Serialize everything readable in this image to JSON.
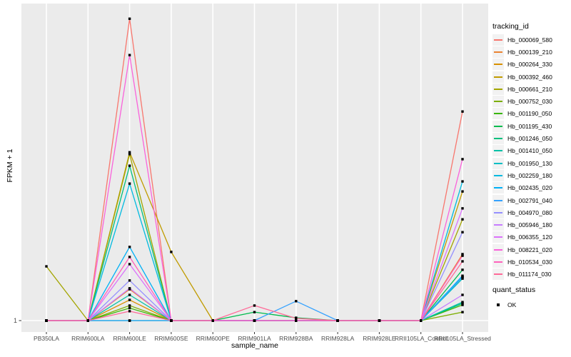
{
  "figure": {
    "bg": "#FFFFFF",
    "panel_bg": "#EBEBEB",
    "grid_color": "#FFFFFF",
    "tick_color": "#333333",
    "tick_label_color": "#4D4D4D",
    "axis_title_color": "#000000",
    "legend_key_bg": "#F2F2F2",
    "marker_color": "#000000"
  },
  "chart_data": {
    "type": "line",
    "title": "",
    "xlabel": "sample_name",
    "ylabel": "FPKM + 1",
    "y_tick_labels": [
      "1"
    ],
    "y_scale_note": "Log-style axis where only the value 1 is labeled at the baseline; series values are relative heights above the y=1 baseline as a fraction of panel height (0 = FPKM+1 of 1).",
    "grid": "major vertical per sample + horizontal line at y=1, white on gray panel",
    "legend_position": "right",
    "marker": "small black square on every observation",
    "categories": [
      "PB350LA",
      "RRIM600LA",
      "RRIM600LE",
      "RRIM600SE",
      "RRIM600PE",
      "RRIM901LA",
      "RRIM928BA",
      "RRIM928LA",
      "RRIM928LE",
      "RRII105LA_Control",
      "RRII105LA_Stressed"
    ],
    "series": [
      {
        "name": "Hb_000069_580",
        "color": "#F8766D",
        "values": [
          0,
          0,
          0.963,
          0,
          0,
          0,
          0,
          0,
          0,
          0,
          0.667
        ]
      },
      {
        "name": "Hb_000139_210",
        "color": "#EA8331",
        "values": [
          0,
          0,
          0.1,
          0,
          0,
          0,
          0,
          0,
          0,
          0,
          0.212
        ]
      },
      {
        "name": "Hb_000264_330",
        "color": "#D89000",
        "values": [
          0,
          0,
          0.066,
          0,
          0,
          0,
          0,
          0,
          0,
          0,
          0.139
        ]
      },
      {
        "name": "Hb_000392_460",
        "color": "#C09B00",
        "values": [
          0,
          0,
          0.537,
          0.219,
          0,
          0,
          0,
          0,
          0,
          0,
          0.412
        ]
      },
      {
        "name": "Hb_000661_210",
        "color": "#A3A500",
        "values": [
          0.173,
          0,
          0.531,
          0,
          0,
          0,
          0,
          0,
          0,
          0,
          0.323
        ]
      },
      {
        "name": "Hb_000752_030",
        "color": "#7CAE00",
        "values": [
          0,
          0,
          0.048,
          0,
          0,
          0,
          0,
          0,
          0,
          0,
          0.027
        ]
      },
      {
        "name": "Hb_001190_050",
        "color": "#39B600",
        "values": [
          0,
          0,
          0.04,
          0,
          0,
          0,
          0,
          0,
          0,
          0,
          0.05
        ]
      },
      {
        "name": "Hb_001195_430",
        "color": "#00BB4E",
        "values": [
          0,
          0,
          0,
          0,
          0,
          0.027,
          0.009,
          0,
          0,
          0,
          0.162
        ]
      },
      {
        "name": "Hb_001246_050",
        "color": "#00BF7D",
        "values": [
          0,
          0,
          0.494,
          0,
          0,
          0,
          0,
          0,
          0,
          0,
          0.055
        ]
      },
      {
        "name": "Hb_001410_050",
        "color": "#00C1A7",
        "values": [
          0,
          0,
          0.082,
          0,
          0,
          0,
          0,
          0,
          0,
          0,
          0.059
        ]
      },
      {
        "name": "Hb_001950_130",
        "color": "#00BFC4",
        "values": [
          0,
          0,
          0,
          0,
          0,
          0,
          0,
          0,
          0,
          0,
          0.134
        ]
      },
      {
        "name": "Hb_002259_180",
        "color": "#00BAE0",
        "values": [
          0,
          0,
          0.437,
          0,
          0,
          0,
          0,
          0,
          0,
          0,
          0.444
        ]
      },
      {
        "name": "Hb_002435_020",
        "color": "#00B0F6",
        "values": [
          0,
          0,
          0.235,
          0,
          0,
          0,
          0,
          0,
          0,
          0,
          0.143
        ]
      },
      {
        "name": "Hb_002791_040",
        "color": "#35A2FF",
        "values": [
          0,
          0,
          0,
          0,
          0,
          0,
          0.062,
          0,
          0,
          0,
          0.139
        ]
      },
      {
        "name": "Hb_004970_080",
        "color": "#9590FF",
        "values": [
          0,
          0,
          0.128,
          0,
          0,
          0,
          0,
          0,
          0,
          0,
          0.282
        ]
      },
      {
        "name": "Hb_005946_180",
        "color": "#C77CFF",
        "values": [
          0,
          0,
          0.103,
          0,
          0,
          0,
          0,
          0,
          0,
          0,
          0.082
        ]
      },
      {
        "name": "Hb_006355_120",
        "color": "#DB72FB",
        "values": [
          0,
          0,
          0.18,
          0,
          0,
          0,
          0,
          0,
          0,
          0,
          0.358
        ]
      },
      {
        "name": "Hb_008221_020",
        "color": "#FA62DB",
        "values": [
          0,
          0,
          0.847,
          0,
          0,
          0,
          0,
          0,
          0,
          0,
          0.515
        ]
      },
      {
        "name": "Hb_010534_030",
        "color": "#FF62BC",
        "values": [
          0,
          0,
          0.203,
          0,
          0,
          0,
          0,
          0,
          0,
          0,
          0.207
        ]
      },
      {
        "name": "Hb_011174_030",
        "color": "#FF6A98",
        "values": [
          0,
          0,
          0.03,
          0,
          0,
          0.048,
          0.007,
          0,
          0,
          0,
          0.189
        ]
      }
    ],
    "legend": {
      "title": "tracking_id"
    },
    "legend2": {
      "title": "quant_status",
      "items": [
        {
          "label": "OK",
          "marker": "black-square"
        }
      ]
    }
  }
}
